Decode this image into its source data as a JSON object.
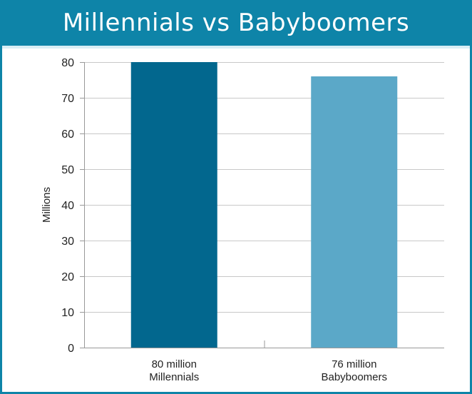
{
  "colors": {
    "header_bg": "#0e84a8",
    "header_text": "#ffffff",
    "frame_border": "#0e84a8",
    "gridline": "#c8c8c8",
    "bar_millennials": "#02678e",
    "bar_babyboomers": "#5ba8c8"
  },
  "chart_data": {
    "type": "bar",
    "title": "Millennials vs Babyboomers",
    "ylabel": "Millions",
    "xlabel": "",
    "ylim": [
      0,
      80
    ],
    "yticks": [
      0,
      10,
      20,
      30,
      40,
      50,
      60,
      70,
      80
    ],
    "grid": true,
    "categories": [
      {
        "line1": "80 million",
        "line2": "Millennials"
      },
      {
        "line1": "76 million",
        "line2": "Babyboomers"
      }
    ],
    "values": [
      80,
      76
    ]
  }
}
